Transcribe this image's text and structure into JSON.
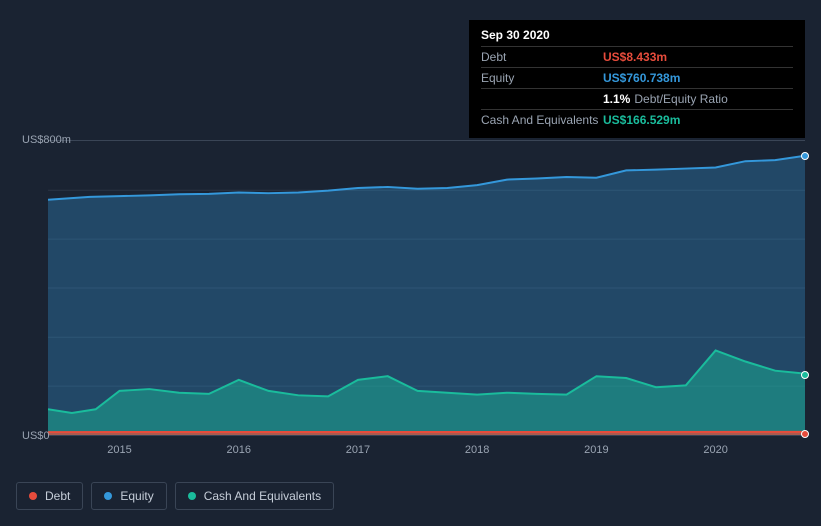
{
  "tooltip": {
    "date": "Sep 30 2020",
    "rows": [
      {
        "label": "Debt",
        "value": "US$8.433m",
        "cls": "debt"
      },
      {
        "label": "Equity",
        "value": "US$760.738m",
        "cls": "equity"
      },
      {
        "label": "",
        "pct": "1.1%",
        "txt": "Debt/Equity Ratio"
      },
      {
        "label": "Cash And Equivalents",
        "value": "US$166.529m",
        "cls": "cash"
      }
    ]
  },
  "chart": {
    "type": "area",
    "background_color": "#1a2332",
    "grid_color": "#2a3544",
    "axis_border_color": "#3a4556",
    "label_color": "#9aa4b2",
    "label_fontsize": 11,
    "ylim": [
      0,
      800
    ],
    "ytick_labels": [
      "US$0",
      "US$800m"
    ],
    "ytick_values": [
      0,
      800
    ],
    "ygrid_values": [
      0,
      133,
      266,
      400,
      533,
      666,
      800
    ],
    "x_domain": [
      2014.4,
      2020.75
    ],
    "xtick_values": [
      2015,
      2016,
      2017,
      2018,
      2019,
      2020
    ],
    "xtick_labels": [
      "2015",
      "2016",
      "2017",
      "2018",
      "2019",
      "2020"
    ],
    "series": [
      {
        "name": "Equity",
        "color": "#3498db",
        "fill_opacity": 0.32,
        "line_width": 2,
        "x": [
          2014.4,
          2014.75,
          2015.0,
          2015.25,
          2015.5,
          2015.75,
          2016.0,
          2016.25,
          2016.5,
          2016.75,
          2017.0,
          2017.25,
          2017.5,
          2017.75,
          2018.0,
          2018.25,
          2018.5,
          2018.75,
          2019.0,
          2019.25,
          2019.5,
          2019.75,
          2020.0,
          2020.25,
          2020.5,
          2020.75
        ],
        "y": [
          640,
          648,
          650,
          652,
          655,
          656,
          660,
          658,
          660,
          665,
          672,
          675,
          670,
          672,
          680,
          695,
          698,
          702,
          700,
          720,
          722,
          725,
          728,
          745,
          748,
          760
        ]
      },
      {
        "name": "Cash And Equivalents",
        "color": "#1abc9c",
        "fill_opacity": 0.45,
        "line_width": 2,
        "x": [
          2014.4,
          2014.6,
          2014.8,
          2015.0,
          2015.25,
          2015.5,
          2015.75,
          2016.0,
          2016.25,
          2016.5,
          2016.75,
          2017.0,
          2017.25,
          2017.5,
          2017.75,
          2018.0,
          2018.25,
          2018.5,
          2018.75,
          2019.0,
          2019.25,
          2019.5,
          2019.75,
          2020.0,
          2020.25,
          2020.5,
          2020.75
        ],
        "y": [
          70,
          60,
          70,
          120,
          125,
          115,
          112,
          150,
          120,
          108,
          105,
          150,
          160,
          120,
          115,
          110,
          115,
          112,
          110,
          160,
          155,
          130,
          135,
          230,
          200,
          175,
          167
        ]
      },
      {
        "name": "Debt",
        "color": "#e74c3c",
        "fill_opacity": 0.7,
        "line_width": 2,
        "x": [
          2014.4,
          2020.75
        ],
        "y": [
          8,
          8.4
        ]
      }
    ]
  },
  "legend": {
    "items": [
      {
        "label": "Debt",
        "color": "#e74c3c"
      },
      {
        "label": "Equity",
        "color": "#3498db"
      },
      {
        "label": "Cash And Equivalents",
        "color": "#1abc9c"
      }
    ],
    "border_color": "#3a4556",
    "text_color": "#c5cdd8",
    "fontsize": 12
  }
}
